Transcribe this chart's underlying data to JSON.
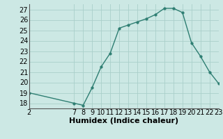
{
  "x": [
    2,
    7,
    8,
    9,
    10,
    11,
    12,
    13,
    14,
    15,
    16,
    17,
    18,
    19,
    20,
    21,
    22,
    23
  ],
  "y": [
    19.0,
    18.0,
    17.8,
    19.5,
    21.5,
    22.8,
    25.2,
    25.5,
    25.8,
    26.1,
    26.5,
    27.1,
    27.1,
    26.7,
    23.8,
    22.5,
    21.0,
    19.9
  ],
  "line_color": "#2e7e72",
  "marker_color": "#2e7e72",
  "bg_color": "#cce8e4",
  "grid_color": "#aacfca",
  "xlabel": "Humidex (Indice chaleur)",
  "xlim": [
    2,
    23
  ],
  "ylim": [
    17.5,
    27.5
  ],
  "xticks": [
    2,
    7,
    8,
    9,
    10,
    11,
    12,
    13,
    14,
    15,
    16,
    17,
    18,
    19,
    20,
    21,
    22,
    23
  ],
  "yticks": [
    18,
    19,
    20,
    21,
    22,
    23,
    24,
    25,
    26,
    27
  ],
  "xlabel_fontsize": 8,
  "tick_fontsize": 7
}
